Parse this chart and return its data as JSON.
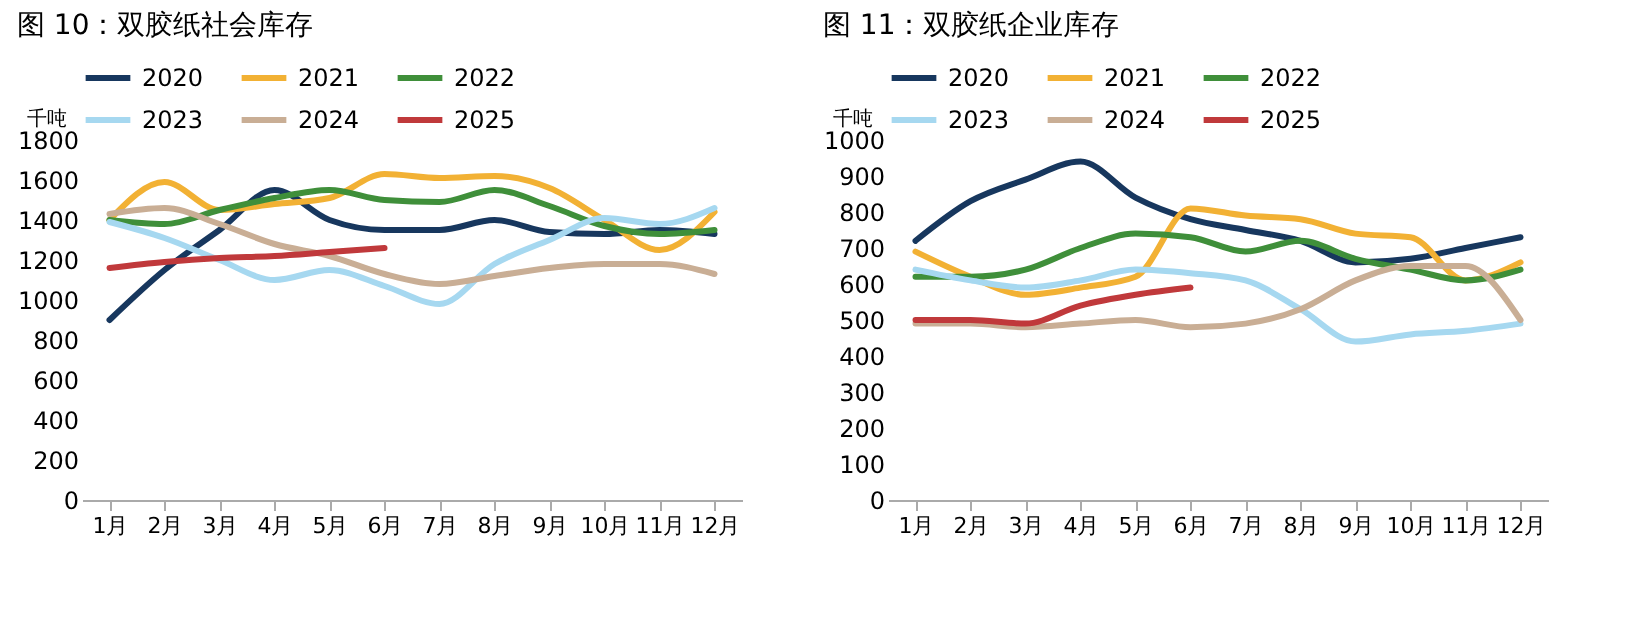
{
  "chart_data": [
    {
      "type": "line",
      "title": "图 10：双胶纸社会库存",
      "ylabel": "千吨",
      "categories": [
        "1月",
        "2月",
        "3月",
        "4月",
        "5月",
        "6月",
        "7月",
        "8月",
        "9月",
        "10月",
        "11月",
        "12月"
      ],
      "ylim": [
        0,
        1800
      ],
      "yticks": [
        0,
        200,
        400,
        600,
        800,
        1000,
        1200,
        1400,
        1600,
        1800
      ],
      "legend": "top",
      "series": [
        {
          "name": "2020",
          "color": "#17375e",
          "values": [
            900,
            1150,
            1350,
            1550,
            1400,
            1350,
            1350,
            1400,
            1340,
            1330,
            1350,
            1330
          ]
        },
        {
          "name": "2021",
          "color": "#f2b134",
          "values": [
            1400,
            1590,
            1450,
            1480,
            1510,
            1630,
            1610,
            1620,
            1560,
            1400,
            1250,
            1440
          ]
        },
        {
          "name": "2022",
          "color": "#3f8f3a",
          "values": [
            1400,
            1380,
            1450,
            1510,
            1550,
            1500,
            1490,
            1550,
            1470,
            1370,
            1330,
            1350
          ]
        },
        {
          "name": "2023",
          "color": "#a6d8f0",
          "values": [
            1390,
            1310,
            1200,
            1100,
            1150,
            1070,
            980,
            1180,
            1300,
            1410,
            1380,
            1460
          ]
        },
        {
          "name": "2024",
          "color": "#c9ae95",
          "values": [
            1430,
            1460,
            1380,
            1280,
            1220,
            1130,
            1080,
            1120,
            1160,
            1180,
            1180,
            1130
          ]
        },
        {
          "name": "2025",
          "color": "#c0393b",
          "values": [
            1160,
            1190,
            1210,
            1220,
            1240,
            1260,
            null,
            null,
            null,
            null,
            null,
            null
          ]
        }
      ]
    },
    {
      "type": "line",
      "title": "图 11：双胶纸企业库存",
      "ylabel": "千吨",
      "categories": [
        "1月",
        "2月",
        "3月",
        "4月",
        "5月",
        "6月",
        "7月",
        "8月",
        "9月",
        "10月",
        "11月",
        "12月"
      ],
      "ylim": [
        0,
        1000
      ],
      "yticks": [
        0,
        100,
        200,
        300,
        400,
        500,
        600,
        700,
        800,
        900,
        1000
      ],
      "legend": "top",
      "series": [
        {
          "name": "2020",
          "color": "#17375e",
          "values": [
            720,
            830,
            890,
            940,
            840,
            780,
            750,
            720,
            660,
            670,
            700,
            730
          ]
        },
        {
          "name": "2021",
          "color": "#f2b134",
          "values": [
            690,
            620,
            570,
            590,
            620,
            810,
            790,
            780,
            740,
            730,
            610,
            660
          ]
        },
        {
          "name": "2022",
          "color": "#3f8f3a",
          "values": [
            620,
            620,
            640,
            700,
            740,
            730,
            690,
            720,
            670,
            640,
            610,
            640
          ]
        },
        {
          "name": "2023",
          "color": "#a6d8f0",
          "values": [
            640,
            610,
            590,
            610,
            640,
            630,
            610,
            530,
            440,
            460,
            470,
            490
          ]
        },
        {
          "name": "2024",
          "color": "#c9ae95",
          "values": [
            490,
            490,
            480,
            490,
            500,
            480,
            490,
            530,
            610,
            650,
            650,
            500
          ]
        },
        {
          "name": "2025",
          "color": "#c0393b",
          "values": [
            500,
            500,
            490,
            540,
            570,
            590,
            null,
            null,
            null,
            null,
            null,
            null
          ]
        }
      ]
    }
  ]
}
